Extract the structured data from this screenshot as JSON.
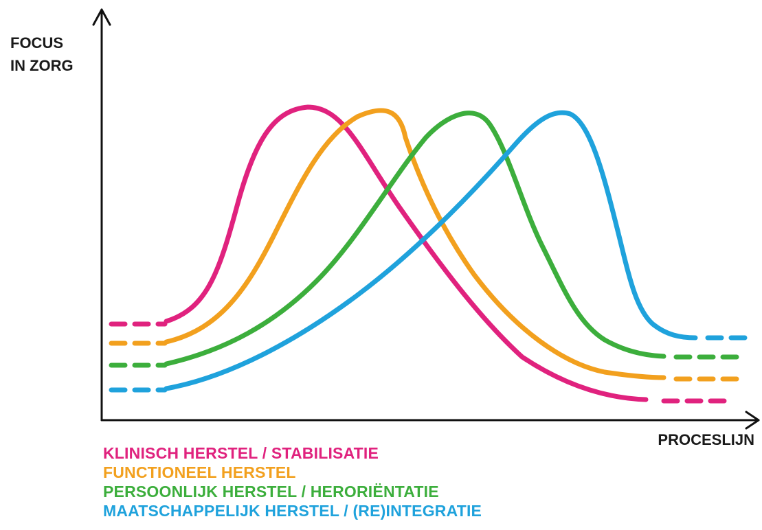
{
  "axes": {
    "y_label_lines": [
      "FOCUS",
      "IN ZORG"
    ],
    "x_label": "PROCESLIJN"
  },
  "curves": [
    {
      "label": "KLINISCH HERSTEL / STABILISATIE",
      "color": "#e0227e"
    },
    {
      "label": "FUNCTIONEEL HERSTEL",
      "color": "#f2a01e"
    },
    {
      "label": "PERSOONLIJK HERSTEL / HERORIËNTATIE",
      "color": "#3cae3c"
    },
    {
      "label": "MAATSCHAPPELIJK HERSTEL / (RE)INTEGRATIE",
      "color": "#1fa2dc"
    }
  ]
}
